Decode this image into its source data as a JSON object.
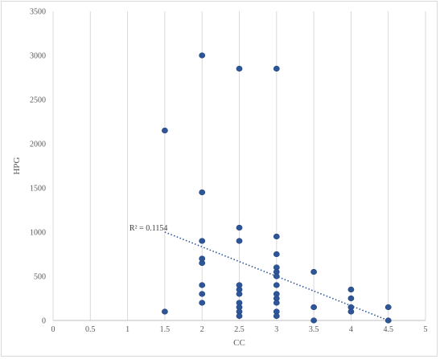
{
  "chart_data": {
    "type": "scatter",
    "title": "",
    "xlabel": "CC",
    "ylabel": "HPG",
    "xlim": [
      0,
      5
    ],
    "ylim": [
      0,
      3500
    ],
    "x_ticks": [
      0,
      0.5,
      1,
      1.5,
      2,
      2.5,
      3,
      3.5,
      4,
      4.5,
      5
    ],
    "y_ticks": [
      0,
      500,
      1000,
      1500,
      2000,
      2500,
      3000,
      3500
    ],
    "x_tick_labels": [
      "0",
      "0.5",
      "1",
      "1.5",
      "2",
      "2.5",
      "3",
      "3.5",
      "4",
      "4.5",
      "5"
    ],
    "y_tick_labels": [
      "0",
      "500",
      "1000",
      "1500",
      "2000",
      "2500",
      "3000",
      "3500"
    ],
    "grid": {
      "vertical": true,
      "horizontal": false
    },
    "points": [
      {
        "x": 1.5,
        "y": 2150
      },
      {
        "x": 1.5,
        "y": 100
      },
      {
        "x": 2,
        "y": 3000
      },
      {
        "x": 2,
        "y": 1450
      },
      {
        "x": 2,
        "y": 900
      },
      {
        "x": 2,
        "y": 700
      },
      {
        "x": 2,
        "y": 650
      },
      {
        "x": 2,
        "y": 400
      },
      {
        "x": 2,
        "y": 300
      },
      {
        "x": 2,
        "y": 200
      },
      {
        "x": 2.5,
        "y": 2850
      },
      {
        "x": 2.5,
        "y": 1050
      },
      {
        "x": 2.5,
        "y": 900
      },
      {
        "x": 2.5,
        "y": 400
      },
      {
        "x": 2.5,
        "y": 350
      },
      {
        "x": 2.5,
        "y": 300
      },
      {
        "x": 2.5,
        "y": 200
      },
      {
        "x": 2.5,
        "y": 150
      },
      {
        "x": 2.5,
        "y": 100
      },
      {
        "x": 2.5,
        "y": 50
      },
      {
        "x": 3,
        "y": 2850
      },
      {
        "x": 3,
        "y": 950
      },
      {
        "x": 3,
        "y": 750
      },
      {
        "x": 3,
        "y": 600
      },
      {
        "x": 3,
        "y": 550
      },
      {
        "x": 3,
        "y": 500
      },
      {
        "x": 3,
        "y": 400
      },
      {
        "x": 3,
        "y": 300
      },
      {
        "x": 3,
        "y": 250
      },
      {
        "x": 3,
        "y": 200
      },
      {
        "x": 3,
        "y": 100
      },
      {
        "x": 3,
        "y": 50
      },
      {
        "x": 3.5,
        "y": 550
      },
      {
        "x": 3.5,
        "y": 150
      },
      {
        "x": 3.5,
        "y": 0
      },
      {
        "x": 4,
        "y": 350
      },
      {
        "x": 4,
        "y": 250
      },
      {
        "x": 4,
        "y": 150
      },
      {
        "x": 4,
        "y": 100
      },
      {
        "x": 4.5,
        "y": 150
      },
      {
        "x": 4.5,
        "y": 0
      }
    ],
    "trendline": {
      "type": "linear",
      "x_start": 1.5,
      "y_start": 1000,
      "x_end": 4.5,
      "y_end": 0,
      "label": "R² = 0.1154"
    },
    "colors": {
      "marker": "#2e5597",
      "trendline": "#2e5597",
      "gridline": "#d9d9d9",
      "axis": "#bfbfbf"
    }
  }
}
